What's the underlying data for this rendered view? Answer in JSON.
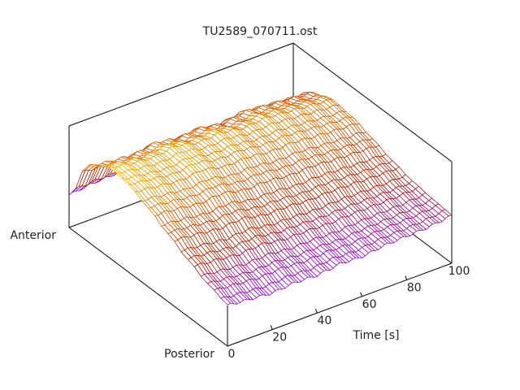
{
  "chart_data": {
    "type": "surface",
    "title": "TU2589_070711.ost",
    "xlabel": "Time [s]",
    "x_ticks": [
      "0",
      "20",
      "40",
      "60",
      "80",
      "100"
    ],
    "xlim": [
      0,
      100
    ],
    "y_labels": {
      "start": "Anterior",
      "end": "Posterior"
    },
    "zlim": [
      0,
      1
    ],
    "grid": false,
    "palette": "purple-red-orange-yellow (by height)",
    "times": [
      0,
      10,
      20,
      30,
      40,
      50,
      60,
      70,
      80,
      90,
      100
    ],
    "positions_anterior_to_posterior": [
      0,
      0.125,
      0.25,
      0.375,
      0.5,
      0.625,
      0.75,
      0.875,
      1
    ],
    "z": [
      [
        0.32,
        0.75,
        0.88,
        0.86,
        0.78,
        0.68,
        0.57,
        0.47,
        0.4
      ],
      [
        0.35,
        0.72,
        0.84,
        0.83,
        0.76,
        0.66,
        0.55,
        0.45,
        0.38
      ],
      [
        0.36,
        0.7,
        0.82,
        0.8,
        0.73,
        0.63,
        0.52,
        0.43,
        0.36
      ],
      [
        0.4,
        0.74,
        0.85,
        0.83,
        0.75,
        0.65,
        0.54,
        0.44,
        0.38
      ],
      [
        0.38,
        0.7,
        0.8,
        0.78,
        0.7,
        0.6,
        0.5,
        0.42,
        0.37
      ],
      [
        0.42,
        0.72,
        0.82,
        0.79,
        0.71,
        0.6,
        0.5,
        0.43,
        0.4
      ],
      [
        0.4,
        0.68,
        0.78,
        0.76,
        0.68,
        0.58,
        0.49,
        0.42,
        0.39
      ],
      [
        0.45,
        0.72,
        0.8,
        0.77,
        0.69,
        0.59,
        0.5,
        0.44,
        0.42
      ],
      [
        0.44,
        0.7,
        0.78,
        0.75,
        0.67,
        0.58,
        0.5,
        0.45,
        0.43
      ],
      [
        0.42,
        0.68,
        0.76,
        0.73,
        0.66,
        0.57,
        0.5,
        0.46,
        0.44
      ],
      [
        0.45,
        0.66,
        0.74,
        0.72,
        0.65,
        0.57,
        0.51,
        0.48,
        0.47
      ]
    ]
  }
}
